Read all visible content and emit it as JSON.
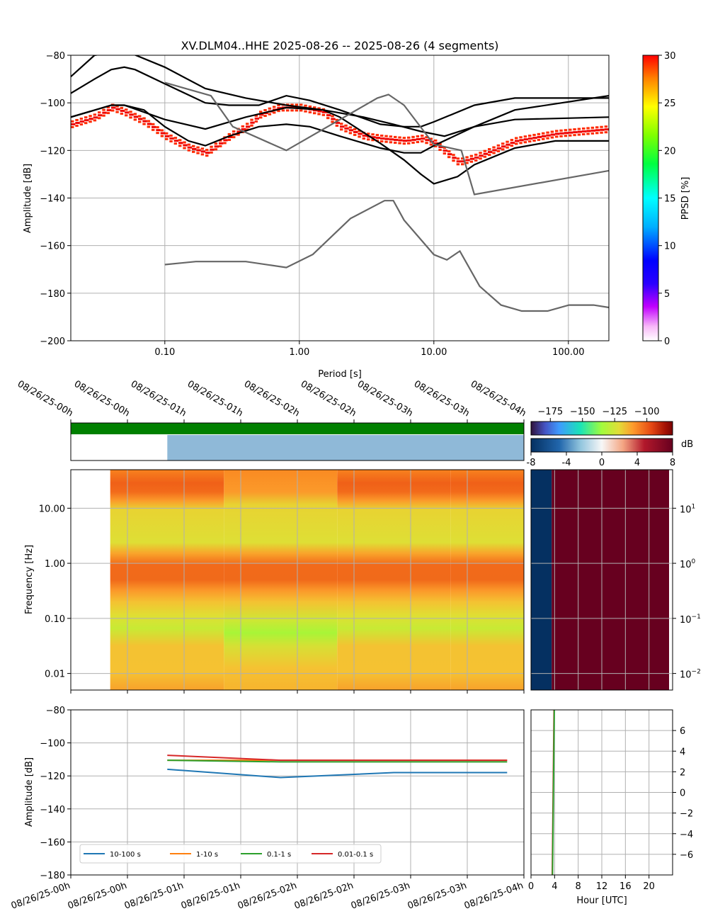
{
  "chart_data": [
    {
      "panel": "ppsd",
      "type": "line",
      "title": "XV.DLM04..HHE   2025-08-26 -- 2025-08-26  (4 segments)",
      "xlabel": "Period [s]",
      "ylabel": "Amplitude [dB]",
      "xscale": "log",
      "xlim": [
        0.02,
        200
      ],
      "ylim": [
        -200,
        -80
      ],
      "x_ticks": [
        0.1,
        1,
        10,
        100
      ],
      "x_tick_labels": [
        "0.10",
        "1.00",
        "10.00",
        "100.00"
      ],
      "y_ticks": [
        -200,
        -180,
        -160,
        -140,
        -120,
        -100,
        -80
      ],
      "y_tick_labels": [
        "−200",
        "−180",
        "−160",
        "−140",
        "−120",
        "−100",
        "−80"
      ],
      "grid": true,
      "colorbar": {
        "label": "PPSD [%]",
        "range": [
          0,
          30
        ],
        "ticks": [
          0,
          5,
          10,
          15,
          20,
          25,
          30
        ],
        "tick_labels": [
          "0",
          "5",
          "10",
          "15",
          "20",
          "25",
          "30"
        ]
      },
      "series": [
        {
          "role": "percentile-upper",
          "color": "#000000",
          "points": [
            [
              0.02,
              -89
            ],
            [
              0.03,
              -80
            ],
            [
              0.05,
              -78
            ],
            [
              0.1,
              -85
            ],
            [
              0.2,
              -94
            ],
            [
              0.4,
              -98
            ],
            [
              0.8,
              -101
            ],
            [
              1.5,
              -103
            ],
            [
              3,
              -106
            ],
            [
              5,
              -109
            ],
            [
              8,
              -112
            ],
            [
              12,
              -114
            ],
            [
              20,
              -110
            ],
            [
              40,
              -103
            ],
            [
              200,
              -97
            ]
          ]
        },
        {
          "role": "percentile-high",
          "color": "#000000",
          "points": [
            [
              0.02,
              -96
            ],
            [
              0.03,
              -90
            ],
            [
              0.04,
              -86
            ],
            [
              0.05,
              -85
            ],
            [
              0.06,
              -86
            ],
            [
              0.1,
              -92
            ],
            [
              0.2,
              -100
            ],
            [
              0.3,
              -101
            ],
            [
              0.5,
              -101
            ],
            [
              0.8,
              -97
            ],
            [
              1.2,
              -99
            ],
            [
              2,
              -103
            ],
            [
              4,
              -109
            ],
            [
              6,
              -110
            ],
            [
              8,
              -110
            ],
            [
              10,
              -108
            ],
            [
              20,
              -101
            ],
            [
              40,
              -98
            ],
            [
              200,
              -98
            ]
          ]
        },
        {
          "role": "mean",
          "color": "#000000",
          "points": [
            [
              0.02,
              -106
            ],
            [
              0.04,
              -101
            ],
            [
              0.05,
              -101
            ],
            [
              0.07,
              -103
            ],
            [
              0.1,
              -110
            ],
            [
              0.15,
              -116
            ],
            [
              0.2,
              -118
            ],
            [
              0.3,
              -114
            ],
            [
              0.5,
              -110
            ],
            [
              0.8,
              -109
            ],
            [
              1.2,
              -110
            ],
            [
              2,
              -114
            ],
            [
              4,
              -119
            ],
            [
              6,
              -121
            ],
            [
              8,
              -121
            ],
            [
              10,
              -118
            ],
            [
              20,
              -110
            ],
            [
              40,
              -107
            ],
            [
              200,
              -106
            ]
          ]
        },
        {
          "role": "percentile-low",
          "color": "#000000",
          "points": [
            [
              0.02,
              -106
            ],
            [
              0.04,
              -101
            ],
            [
              0.05,
              -101
            ],
            [
              0.1,
              -107
            ],
            [
              0.2,
              -111
            ],
            [
              0.4,
              -106
            ],
            [
              0.8,
              -102
            ],
            [
              1.5,
              -103
            ],
            [
              2,
              -106
            ],
            [
              4,
              -117
            ],
            [
              6,
              -124
            ],
            [
              8,
              -130
            ],
            [
              10,
              -134
            ],
            [
              15,
              -131
            ],
            [
              20,
              -126
            ],
            [
              40,
              -119
            ],
            [
              80,
              -116
            ],
            [
              200,
              -116
            ]
          ]
        },
        {
          "role": "noise-model-high",
          "color": "#666666",
          "points": [
            [
              0.1,
              -91.5
            ],
            [
              0.22,
              -97
            ],
            [
              0.32,
              -110
            ],
            [
              0.8,
              -120
            ],
            [
              3.8,
              -98
            ],
            [
              4.6,
              -96.5
            ],
            [
              6,
              -101
            ],
            [
              10,
              -117.5
            ],
            [
              16,
              -120
            ],
            [
              20,
              -138.5
            ],
            [
              200,
              -128.5
            ]
          ]
        },
        {
          "role": "noise-model-low",
          "color": "#666666",
          "points": [
            [
              0.1,
              -168
            ],
            [
              0.17,
              -166.7
            ],
            [
              0.4,
              -166.7
            ],
            [
              0.8,
              -169.2
            ],
            [
              1.26,
              -163.7
            ],
            [
              2.4,
              -148.6
            ],
            [
              4.3,
              -141.1
            ],
            [
              5,
              -141.1
            ],
            [
              6,
              -149.3
            ],
            [
              10,
              -163.8
            ],
            [
              12.5,
              -166
            ],
            [
              15.6,
              -162.3
            ],
            [
              21.9,
              -177.1
            ],
            [
              31.6,
              -185
            ],
            [
              45,
              -187.5
            ],
            [
              70,
              -187.5
            ],
            [
              101,
              -185
            ],
            [
              154,
              -185
            ],
            [
              200,
              -186
            ]
          ]
        },
        {
          "role": "ppsd-density",
          "color": "#ee0000",
          "points": [
            [
              0.02,
              -109
            ],
            [
              0.03,
              -106
            ],
            [
              0.04,
              -102
            ],
            [
              0.05,
              -104
            ],
            [
              0.07,
              -108
            ],
            [
              0.1,
              -114
            ],
            [
              0.15,
              -119
            ],
            [
              0.2,
              -121
            ],
            [
              0.3,
              -114
            ],
            [
              0.4,
              -110
            ],
            [
              0.5,
              -105
            ],
            [
              0.7,
              -102
            ],
            [
              1,
              -102
            ],
            [
              1.5,
              -104
            ],
            [
              2,
              -110
            ],
            [
              3,
              -114
            ],
            [
              4,
              -115
            ],
            [
              6,
              -116
            ],
            [
              8,
              -115
            ],
            [
              10,
              -117
            ],
            [
              15,
              -125
            ],
            [
              20,
              -123
            ],
            [
              40,
              -116
            ],
            [
              80,
              -113
            ],
            [
              200,
              -111
            ]
          ]
        }
      ]
    },
    {
      "panel": "data-availability",
      "type": "timeline",
      "bars": [
        {
          "color": "#008000",
          "start": 0.0,
          "end": 1.0
        },
        {
          "color": "#8fb9d8",
          "start": 0.213,
          "end": 1.0
        }
      ]
    },
    {
      "panel": "spectrogram",
      "type": "heatmap",
      "ylabel": "Frequency [Hz]",
      "yscale": "log",
      "ylim": [
        0.005,
        50
      ],
      "y_ticks": [
        0.01,
        0.1,
        1,
        10
      ],
      "y_tick_labels": [
        "0.01",
        "0.10",
        "1.00",
        "10.00"
      ],
      "x_tick_labels": [
        "08/26/25-00h",
        "08/26/25-00h",
        "08/26/25-01h",
        "08/26/25-01h",
        "08/26/25-02h",
        "08/26/25-02h",
        "08/26/25-03h",
        "08/26/25-03h",
        "08/26/25-04h"
      ],
      "segments": [
        {
          "start": 0.087,
          "end": 0.338
        },
        {
          "start": 0.338,
          "end": 0.588
        },
        {
          "start": 0.588,
          "end": 0.838
        },
        {
          "start": 0.838,
          "end": 1.0
        }
      ],
      "colorbar": {
        "ticks": [
          -175,
          -150,
          -125,
          -100
        ],
        "tick_labels": [
          "−175",
          "−150",
          "−125",
          "−100"
        ]
      }
    },
    {
      "panel": "difference",
      "type": "heatmap",
      "colorbar": {
        "label": "dB",
        "ticks": [
          -8,
          -4,
          0,
          4,
          8
        ],
        "tick_labels": [
          "-8",
          "-4",
          "0",
          "4",
          "8"
        ]
      },
      "y_tick_exponents": [
        "-2",
        "-1",
        "0",
        "1"
      ],
      "split_hour": 4
    },
    {
      "panel": "band-amplitude",
      "type": "line",
      "ylabel": "Amplitude [dB]",
      "ylim": [
        -180,
        -80
      ],
      "y_ticks": [
        -180,
        -160,
        -140,
        -120,
        -100,
        -80
      ],
      "y_tick_labels": [
        "−180",
        "−160",
        "−140",
        "−120",
        "−100",
        "−80"
      ],
      "x_tick_labels": [
        "08/26/25-00h",
        "08/26/25-00h",
        "08/26/25-01h",
        "08/26/25-01h",
        "08/26/25-02h",
        "08/26/25-02h",
        "08/26/25-03h",
        "08/26/25-03h",
        "08/26/25-04h"
      ],
      "legend": "lower-left",
      "series": [
        {
          "name": "10-100 s",
          "color": "#1f77b4",
          "x": [
            0.213,
            0.463,
            0.713,
            0.963
          ],
          "values": [
            -116,
            -121,
            -118,
            -118
          ]
        },
        {
          "name": "1-10 s",
          "color": "#ff7f0e",
          "x": [
            0.213,
            0.463,
            0.713,
            0.963
          ],
          "values": [
            -110.5,
            -110.5,
            -110.5,
            -110.5
          ]
        },
        {
          "name": "0.1-1 s",
          "color": "#2ca02c",
          "x": [
            0.213,
            0.463,
            0.713,
            0.963
          ],
          "values": [
            -110.5,
            -111.5,
            -111.5,
            -111.5
          ]
        },
        {
          "name": "0.01-0.1 s",
          "color": "#d62728",
          "x": [
            0.213,
            0.463,
            0.713,
            0.963
          ],
          "values": [
            -107.5,
            -110.5,
            -110.5,
            -110.5
          ]
        }
      ]
    },
    {
      "panel": "hourly-difference",
      "type": "line",
      "xlabel": "Hour [UTC]",
      "xlim": [
        0,
        24
      ],
      "x_ticks": [
        0,
        4,
        8,
        12,
        16,
        20
      ],
      "x_tick_labels": [
        "0",
        "4",
        "8",
        "12",
        "16",
        "20"
      ],
      "ylim": [
        -8,
        8
      ],
      "y_ticks": [
        -6,
        -4,
        -2,
        0,
        2,
        4,
        6
      ],
      "y_tick_labels": [
        "−6",
        "−4",
        "−2",
        "0",
        "2",
        "4",
        "6"
      ],
      "series": [
        {
          "color": "#d62728",
          "points": [
            [
              3.6,
              -8
            ],
            [
              3.9,
              8
            ]
          ]
        },
        {
          "color": "#2ca02c",
          "points": [
            [
              3.65,
              -8
            ],
            [
              3.95,
              8
            ]
          ]
        }
      ]
    }
  ]
}
